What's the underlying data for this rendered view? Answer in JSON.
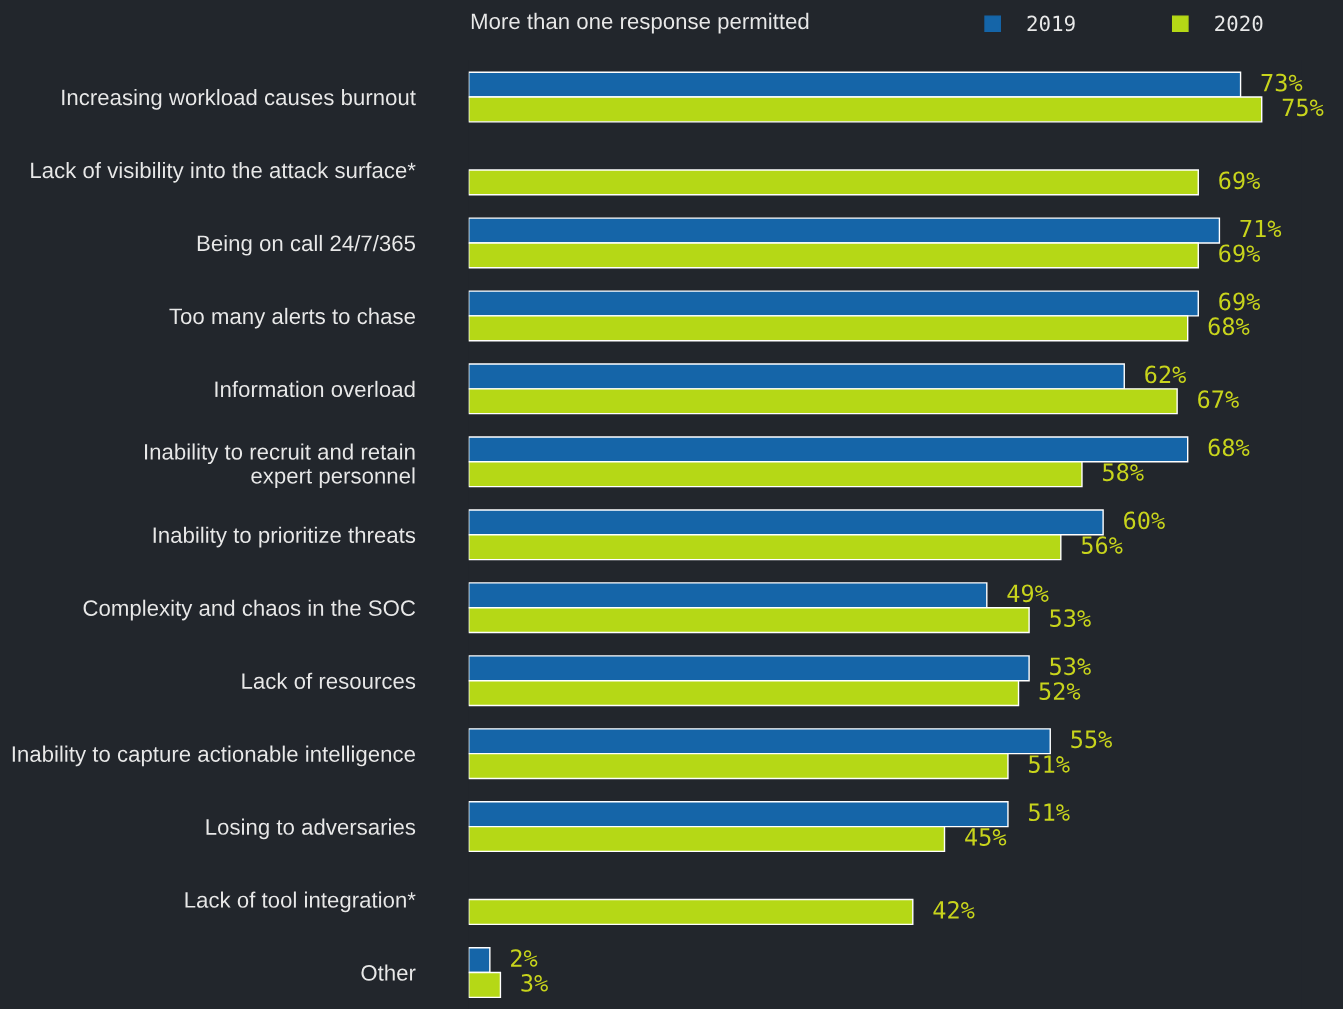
{
  "chart_data": {
    "type": "bar",
    "orientation": "horizontal",
    "title": "More than one response permitted",
    "categories": [
      "Increasing workload causes burnout",
      "Lack of visibility into the attack surface*",
      "Being on call 24/7/365",
      "Too many alerts to chase",
      "Information overload",
      "Inability to recruit and retain\nexpert personnel",
      "Inability to prioritize threats",
      "Complexity and chaos in the SOC",
      "Lack of resources",
      "Inability to capture actionable intelligence",
      "Losing to adversaries",
      "Lack of tool integration*",
      "Other"
    ],
    "series": [
      {
        "name": "2019",
        "color": "#1565a8",
        "values": [
          73,
          null,
          71,
          69,
          62,
          68,
          60,
          49,
          53,
          55,
          51,
          null,
          2
        ],
        "value_labels": [
          "73%",
          null,
          "71%",
          "69%",
          "62%",
          "68%",
          "60%",
          "49%",
          "53%",
          "55%",
          "51%",
          null,
          "2%"
        ]
      },
      {
        "name": "2020",
        "color": "#b5d816",
        "values": [
          75,
          69,
          69,
          68,
          67,
          58,
          56,
          53,
          52,
          51,
          45,
          42,
          3
        ],
        "value_labels": [
          "75%",
          "69%",
          "69%",
          "68%",
          "67%",
          "58%",
          "56%",
          "53%",
          "52%",
          "51%",
          "45%",
          "42%",
          "3%"
        ]
      }
    ],
    "legend": "top right",
    "grid": false,
    "tick_labels": "y"
  }
}
